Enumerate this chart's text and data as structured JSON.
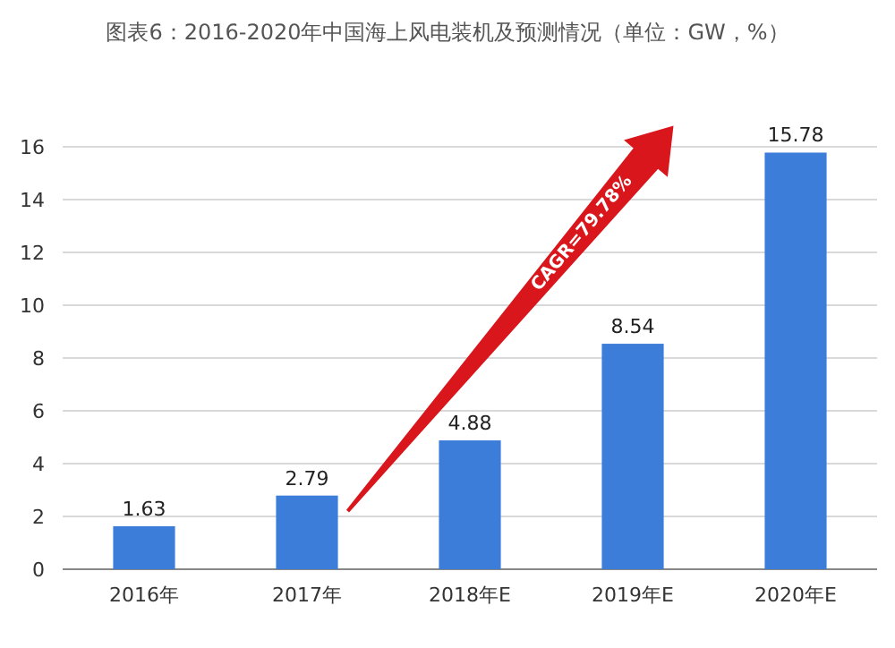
{
  "chart_data": {
    "type": "bar",
    "title": "图表6：2016-2020年中国海上风电装机及预测情况（单位：GW，%）",
    "categories": [
      "2016年",
      "2017年",
      "2018年E",
      "2019年E",
      "2020年E"
    ],
    "values": [
      1.63,
      2.79,
      4.88,
      8.54,
      15.78
    ],
    "color": "#3b7dd8",
    "ylim": [
      0,
      16
    ],
    "yticks": [
      0,
      2,
      4,
      6,
      8,
      10,
      12,
      14,
      16
    ],
    "grid": "y",
    "data_labels": true,
    "annotations": [
      "CAGR=79.78%"
    ]
  }
}
